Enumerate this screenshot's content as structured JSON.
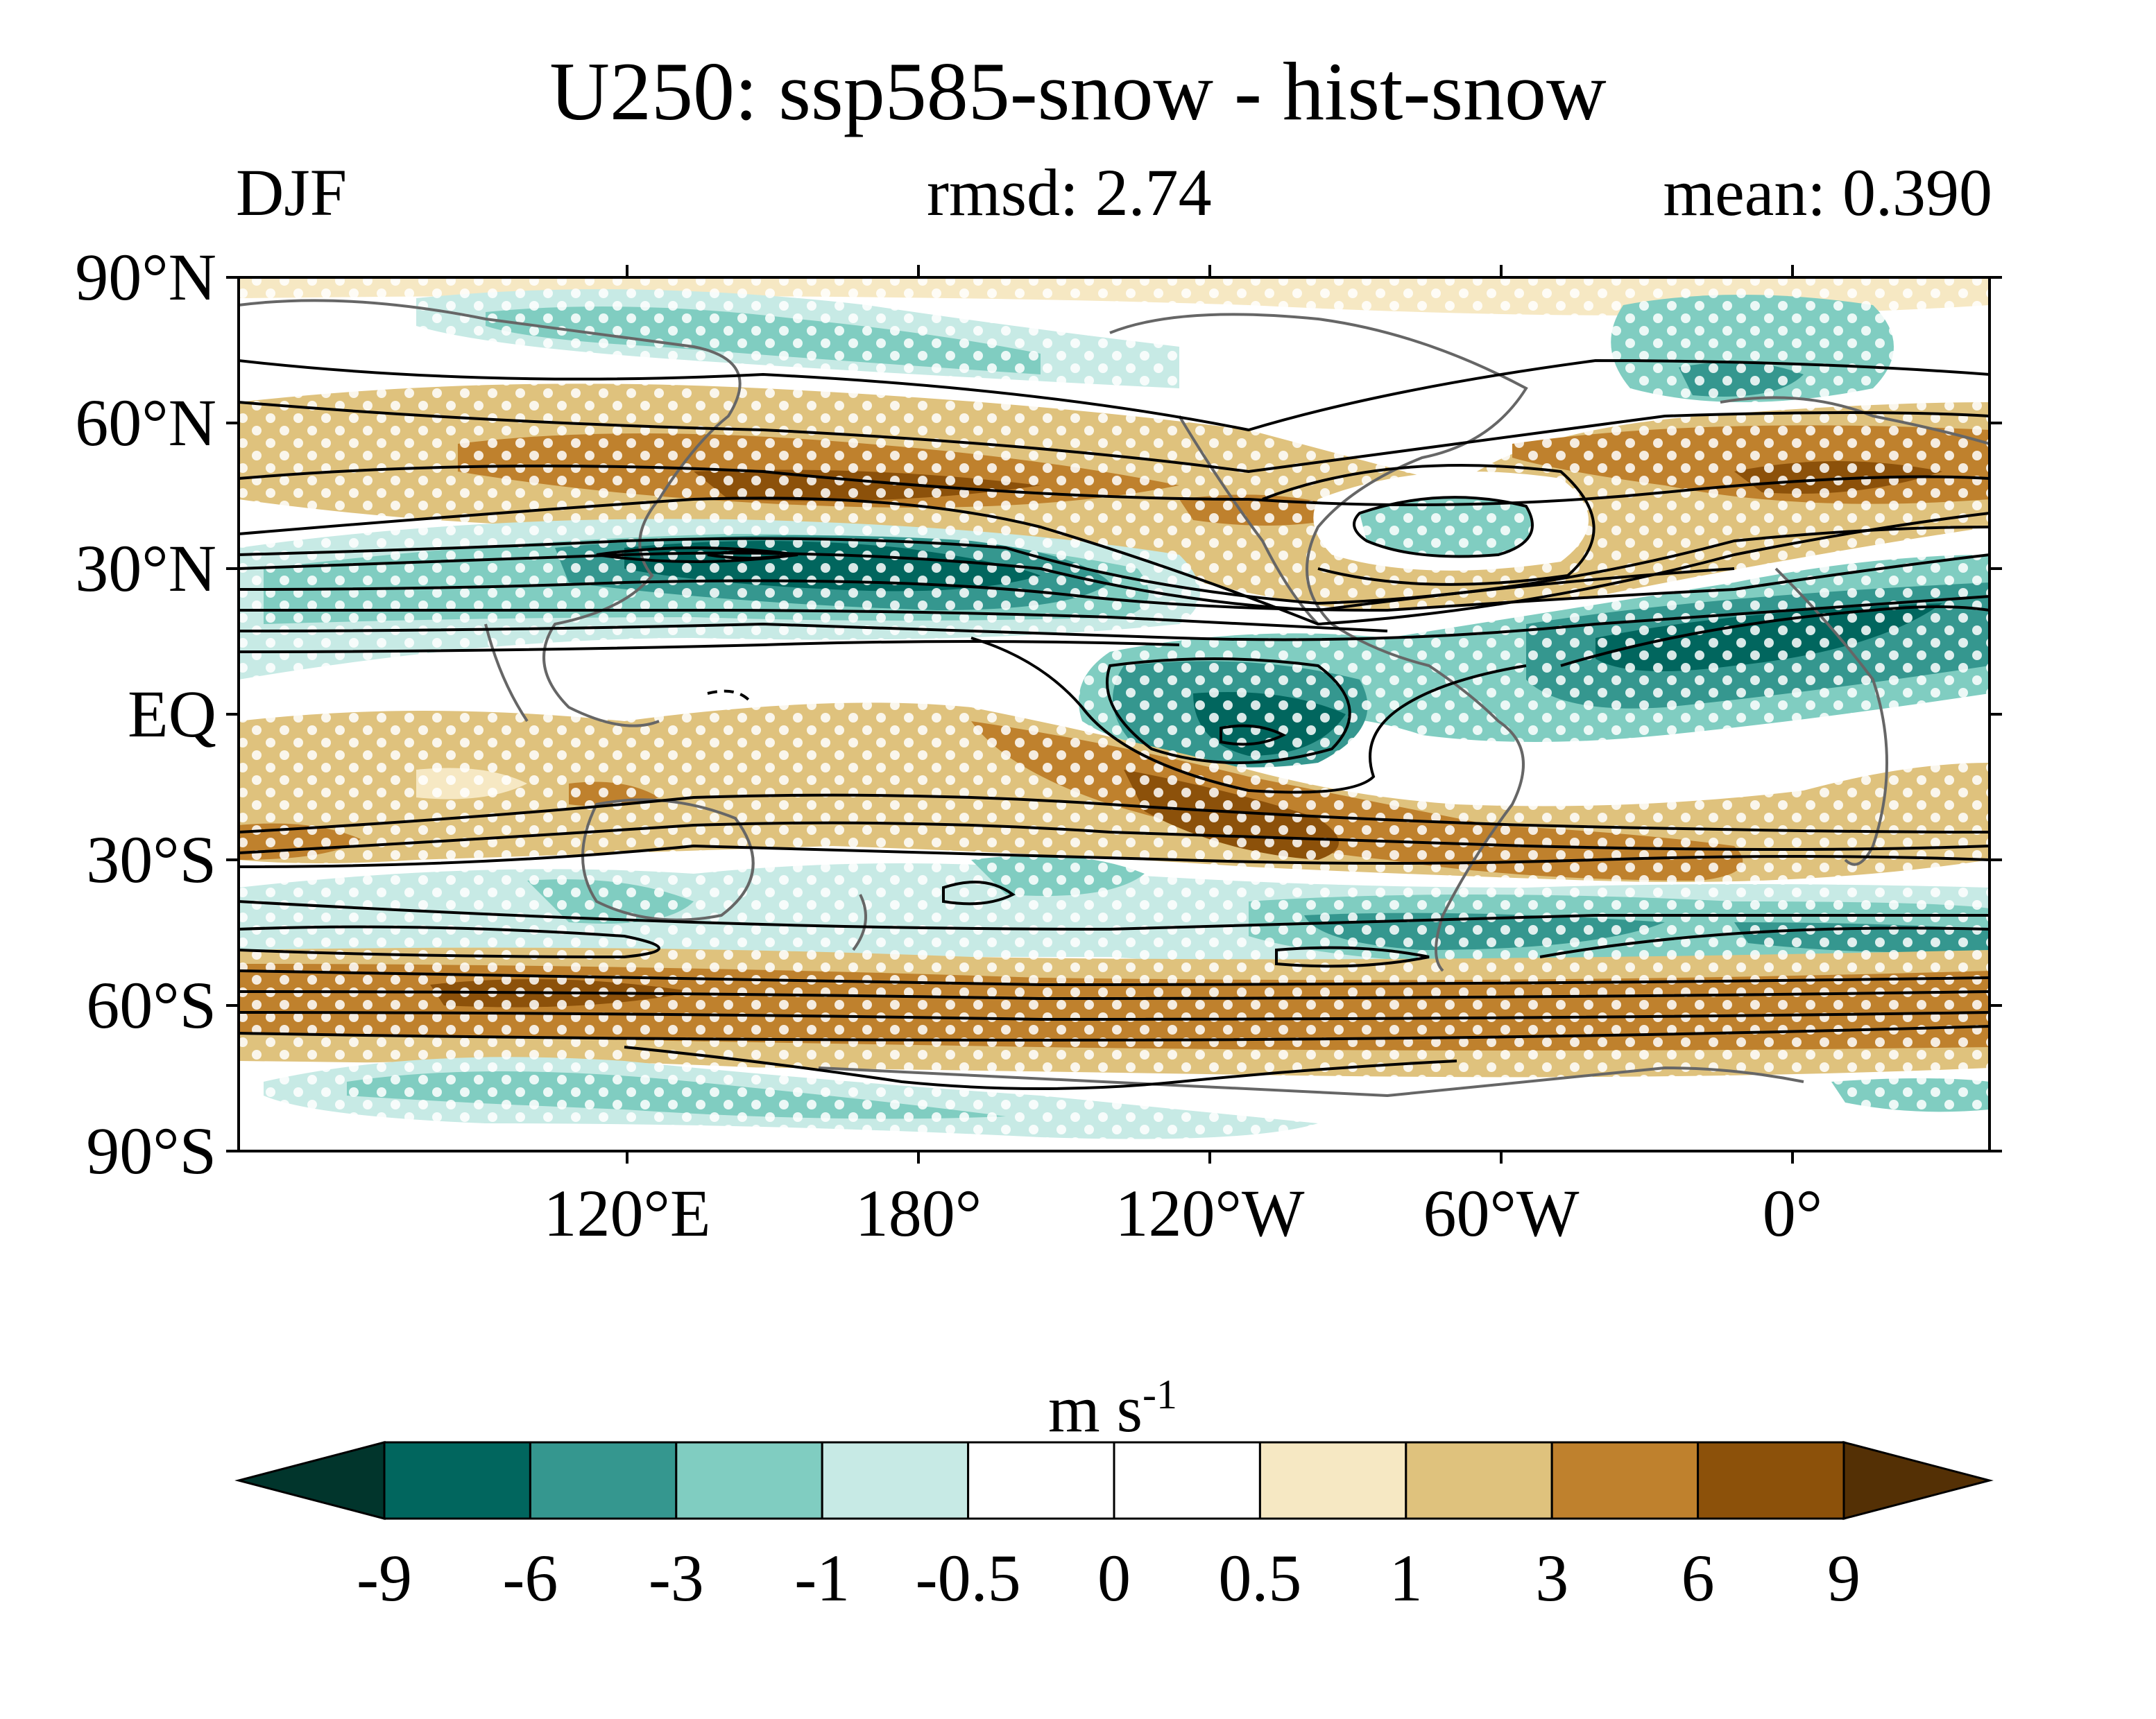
{
  "title": "U250: ssp585-snow - hist-snow",
  "season": "DJF",
  "rmsd_text": "rmsd: 2.74",
  "mean_text": "mean: 0.390",
  "lat_labels": [
    "90°N",
    "60°N",
    "30°N",
    "EQ",
    "30°S",
    "60°S",
    "90°S"
  ],
  "lon_labels": [
    "120°E",
    "180°",
    "120°W",
    "60°W",
    "0°"
  ],
  "colorbar": {
    "unit_base": "m s",
    "unit_exp": "-1",
    "ticks": [
      "-9",
      "-6",
      "-3",
      "-1",
      "-0.5",
      "0",
      "0.5",
      "1",
      "3",
      "6",
      "9"
    ],
    "colors": [
      "#01352c",
      "#01665e",
      "#35978f",
      "#80cdc1",
      "#c7eae5",
      "#ffffff",
      "#ffffff",
      "#f6e8c3",
      "#dfc27d",
      "#bf812d",
      "#8c510a",
      "#543005"
    ]
  }
}
